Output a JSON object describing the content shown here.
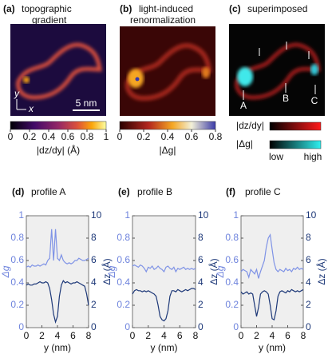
{
  "panels": {
    "a": {
      "label": "(a)",
      "title": [
        "topographic",
        "gradient"
      ],
      "scalebar": "5 nm",
      "axes": [
        "y",
        "x"
      ],
      "colorbar": {
        "lim": [
          0,
          1
        ],
        "ticks": [
          0,
          0.2,
          0.4,
          0.6,
          0.8,
          1
        ],
        "label": "|dz/dy| (Å)"
      }
    },
    "b": {
      "label": "(b)",
      "title": [
        "light-induced",
        "renormalization"
      ],
      "colorbar": {
        "lim": [
          0,
          0.8
        ],
        "ticks": [
          0,
          0.2,
          0.4,
          0.6,
          0.8
        ],
        "label": "|Δg|"
      }
    },
    "c": {
      "label": "(c)",
      "title": [
        "superimposed"
      ],
      "markers": [
        "A",
        "B",
        "C"
      ],
      "legend": {
        "items": [
          "|dz/dy|",
          "|Δg|"
        ],
        "low": "low",
        "high": "high"
      }
    }
  },
  "chart_data": [
    {
      "type": "line",
      "label": "(d)",
      "title": "profile A",
      "xlabel": "y (nm)",
      "ylabel": "Δg",
      "y2label": "Δz (Å)",
      "xlim": [
        0,
        8
      ],
      "xticks": [
        0,
        2,
        4,
        6,
        8
      ],
      "ylim": [
        0,
        1
      ],
      "yticks": [
        0,
        0.2,
        0.4,
        0.6,
        0.8,
        1
      ],
      "y2lim": [
        0,
        10
      ],
      "y2ticks": [
        0,
        2,
        4,
        6,
        8,
        10
      ],
      "x": [
        0,
        0.25,
        0.5,
        0.75,
        1,
        1.25,
        1.5,
        1.75,
        2,
        2.25,
        2.5,
        2.75,
        3,
        3.25,
        3.5,
        3.75,
        4,
        4.25,
        4.5,
        4.75,
        5,
        5.25,
        5.5,
        5.75,
        6,
        6.25,
        6.5,
        6.75,
        7,
        7.25,
        7.5,
        7.75,
        8
      ],
      "series": [
        {
          "name": "Δg",
          "color": "#7f93e6",
          "values": [
            0.54,
            0.55,
            0.54,
            0.56,
            0.55,
            0.55,
            0.56,
            0.55,
            0.56,
            0.57,
            0.56,
            0.6,
            0.62,
            0.88,
            0.6,
            0.88,
            0.62,
            0.6,
            0.65,
            0.6,
            0.58,
            0.57,
            0.58,
            0.57,
            0.58,
            0.6,
            0.6,
            0.62,
            0.61,
            0.6,
            0.6,
            0.61,
            0.62
          ]
        },
        {
          "name": "Δz",
          "color": "#1d3878",
          "axis": "y2",
          "values": [
            3.8,
            3.9,
            3.8,
            3.8,
            3.9,
            3.9,
            4.0,
            4.1,
            4.0,
            4.0,
            4.1,
            4.0,
            3.5,
            2.5,
            1.2,
            0.5,
            1.0,
            2.8,
            3.8,
            4.2,
            4.0,
            4.1,
            4.0,
            3.9,
            4.0,
            4.0,
            4.1,
            4.0,
            3.9,
            3.8,
            3.7,
            3.0,
            2.0
          ]
        }
      ]
    },
    {
      "type": "line",
      "label": "(e)",
      "title": "profile B",
      "xlabel": "y (nm)",
      "ylabel": "Δg",
      "y2label": "Δz (Å)",
      "xlim": [
        0,
        8
      ],
      "xticks": [
        0,
        2,
        4,
        6,
        8
      ],
      "ylim": [
        0,
        1
      ],
      "yticks": [
        0,
        0.2,
        0.4,
        0.6,
        0.8,
        1
      ],
      "y2lim": [
        0,
        10
      ],
      "y2ticks": [
        0,
        2,
        4,
        6,
        8,
        10
      ],
      "x": [
        0,
        0.25,
        0.5,
        0.75,
        1,
        1.25,
        1.5,
        1.75,
        2,
        2.25,
        2.5,
        2.75,
        3,
        3.25,
        3.5,
        3.75,
        4,
        4.25,
        4.5,
        4.75,
        5,
        5.25,
        5.5,
        5.75,
        6,
        6.25,
        6.5,
        6.75,
        7,
        7.25,
        7.5,
        7.75,
        8
      ],
      "series": [
        {
          "name": "Δg",
          "color": "#7f93e6",
          "values": [
            0.55,
            0.56,
            0.55,
            0.54,
            0.56,
            0.55,
            0.53,
            0.5,
            0.54,
            0.53,
            0.55,
            0.52,
            0.53,
            0.55,
            0.53,
            0.52,
            0.5,
            0.54,
            0.55,
            0.53,
            0.52,
            0.54,
            0.5,
            0.53,
            0.52,
            0.53,
            0.54,
            0.52,
            0.53,
            0.52,
            0.53,
            0.52,
            0.53
          ]
        },
        {
          "name": "Δz",
          "color": "#1d3878",
          "axis": "y2",
          "values": [
            3.0,
            3.3,
            3.4,
            3.3,
            3.3,
            3.2,
            3.3,
            3.2,
            3.3,
            3.2,
            3.1,
            3.0,
            2.8,
            2.0,
            1.0,
            0.7,
            0.6,
            0.8,
            1.5,
            2.8,
            3.3,
            3.3,
            3.2,
            3.4,
            3.3,
            3.2,
            3.3,
            3.4,
            3.3,
            3.4,
            3.5,
            3.5,
            3.4
          ]
        }
      ]
    },
    {
      "type": "line",
      "label": "(f)",
      "title": "profile C",
      "xlabel": "y (nm)",
      "ylabel": "Δg",
      "y2label": "Δz (Å)",
      "xlim": [
        0,
        8
      ],
      "xticks": [
        0,
        2,
        4,
        6,
        8
      ],
      "ylim": [
        0,
        1
      ],
      "yticks": [
        0,
        0.2,
        0.4,
        0.6,
        0.8,
        1
      ],
      "y2lim": [
        0,
        10
      ],
      "y2ticks": [
        0,
        2,
        4,
        6,
        8,
        10
      ],
      "x": [
        0,
        0.25,
        0.5,
        0.75,
        1,
        1.25,
        1.5,
        1.75,
        2,
        2.25,
        2.5,
        2.75,
        3,
        3.25,
        3.5,
        3.75,
        4,
        4.25,
        4.5,
        4.75,
        5,
        5.25,
        5.5,
        5.75,
        6,
        6.25,
        6.5,
        6.75,
        7,
        7.25,
        7.5,
        7.75,
        8
      ],
      "series": [
        {
          "name": "Δg",
          "color": "#7f93e6",
          "values": [
            0.5,
            0.52,
            0.51,
            0.5,
            0.45,
            0.52,
            0.5,
            0.48,
            0.52,
            0.44,
            0.5,
            0.55,
            0.6,
            0.72,
            0.8,
            0.83,
            0.7,
            0.58,
            0.52,
            0.5,
            0.52,
            0.51,
            0.5,
            0.53,
            0.51,
            0.52,
            0.5,
            0.53,
            0.52,
            0.54,
            0.52,
            0.53,
            0.52
          ]
        },
        {
          "name": "Δz",
          "color": "#1d3878",
          "axis": "y2",
          "values": [
            3.2,
            3.0,
            3.1,
            3.2,
            3.0,
            3.1,
            3.0,
            2.0,
            1.0,
            1.8,
            3.0,
            3.2,
            3.3,
            3.2,
            3.0,
            2.0,
            0.8,
            0.7,
            1.5,
            2.8,
            3.2,
            3.3,
            3.2,
            3.1,
            3.3,
            3.2,
            3.4,
            3.3,
            3.2,
            3.3,
            3.2,
            3.3,
            3.4
          ]
        }
      ]
    }
  ]
}
